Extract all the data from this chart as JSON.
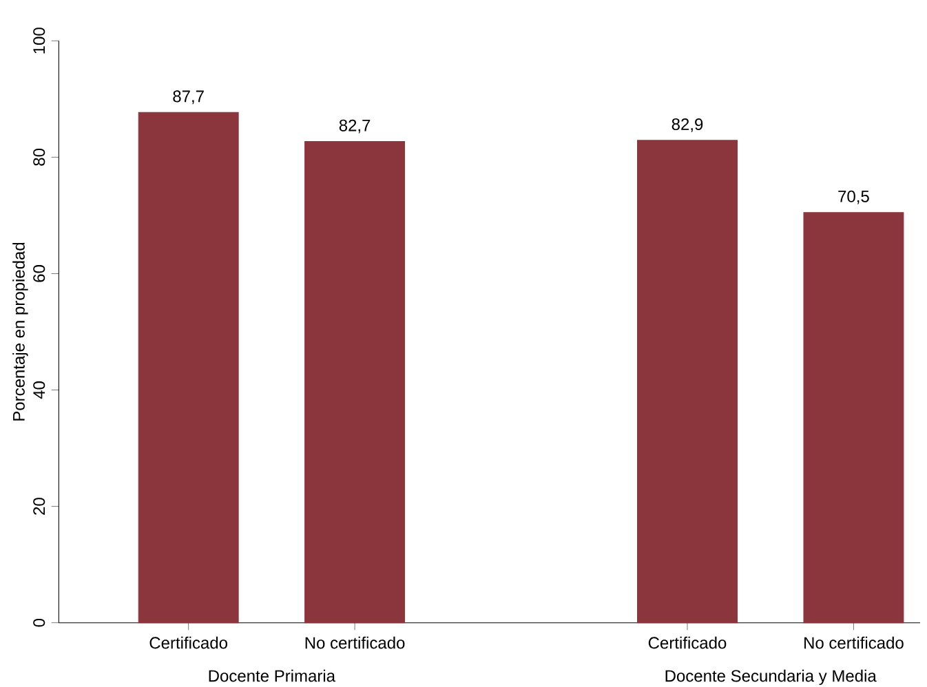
{
  "chart_data": {
    "type": "bar",
    "ylabel": "Porcentaje en propiedad",
    "categories": [
      "Certificado",
      "No certificado",
      null,
      "Certificado",
      "No certificado"
    ],
    "values": [
      87.7,
      82.7,
      null,
      82.9,
      70.5
    ],
    "value_labels": [
      "87,7",
      "82,7",
      null,
      "82,9",
      "70,5"
    ],
    "color": "#8b363c",
    "ylim": [
      0,
      100
    ],
    "yticks": [
      0,
      20,
      40,
      60,
      80,
      100
    ],
    "grid": false,
    "annotations": [
      "Docente Primaria",
      "Docente Secundaria y Media"
    ]
  }
}
